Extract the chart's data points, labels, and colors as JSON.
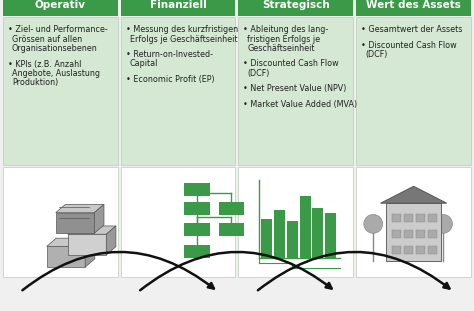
{
  "headers": [
    "Operativ",
    "Finanziell",
    "Strategisch",
    "Wert des Assets"
  ],
  "header_bg": "#3a9a48",
  "header_text_color": "#ffffff",
  "cell_bg": "#d4e8d4",
  "outer_bg": "#f0f0f0",
  "bullet_texts": [
    [
      "Ziel- und Performance-\nGrössen auf allen\nOrganisationsebenen",
      "KPIs (z.B. Anzahl\nAngebote, Auslastung\nProduktion)"
    ],
    [
      "Messung des kurzfristigen\nErfolgs je Geschäftseinheit",
      "Return-on-Invested-\nCapital",
      "Economic Profit (EP)"
    ],
    [
      "Ableitung des lang-\nfristigen Erfolgs je\nGeschäftseinheit",
      "Discounted Cash Flow\n(DCF)",
      "Net Present Value (NPV)",
      "Market Value Added (MVA)"
    ],
    [
      "Gesamtwert der Assets",
      "Discounted Cash Flow\n(DCF)"
    ]
  ],
  "n_cols": 4,
  "arrow_color": "#111111",
  "font_size_header": 7.5,
  "font_size_body": 5.8,
  "green": "#3a9a48",
  "green_light": "#3aaa58"
}
